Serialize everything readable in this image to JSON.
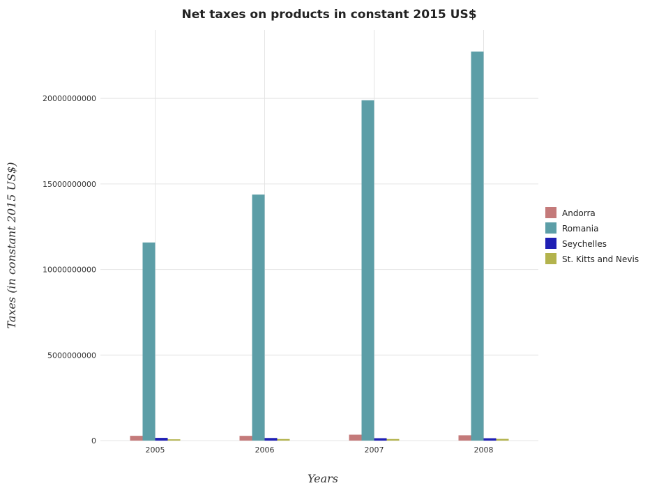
{
  "chart_data": {
    "type": "bar",
    "title": "Net taxes on products in constant 2015 US$",
    "xlabel": "Years",
    "ylabel": "Taxes (in constant 2015 US$)",
    "categories": [
      "2005",
      "2006",
      "2007",
      "2008"
    ],
    "ylim": [
      0,
      24000000000
    ],
    "yticks": [
      {
        "value": 0,
        "label": "0"
      },
      {
        "value": 5000000000,
        "label": "5000000000"
      },
      {
        "value": 10000000000,
        "label": "10000000000"
      },
      {
        "value": 15000000000,
        "label": "15000000000"
      },
      {
        "value": 20000000000,
        "label": "20000000000"
      }
    ],
    "grid": true,
    "legend_position": "right",
    "series": [
      {
        "name": "Andorra",
        "color": "#c47a7a",
        "values": [
          280000000,
          278000000,
          345000000,
          310000000
        ]
      },
      {
        "name": "Romania",
        "color": "#5c9ea7",
        "values": [
          11580000000,
          14380000000,
          19890000000,
          22740000000
        ]
      },
      {
        "name": "Seychelles",
        "color": "#1f1fb4",
        "values": [
          160000000,
          152000000,
          140000000,
          138000000
        ]
      },
      {
        "name": "St. Kitts and Nevis",
        "color": "#b3b34d",
        "values": [
          75000000,
          92000000,
          92000000,
          100000000
        ]
      }
    ]
  }
}
